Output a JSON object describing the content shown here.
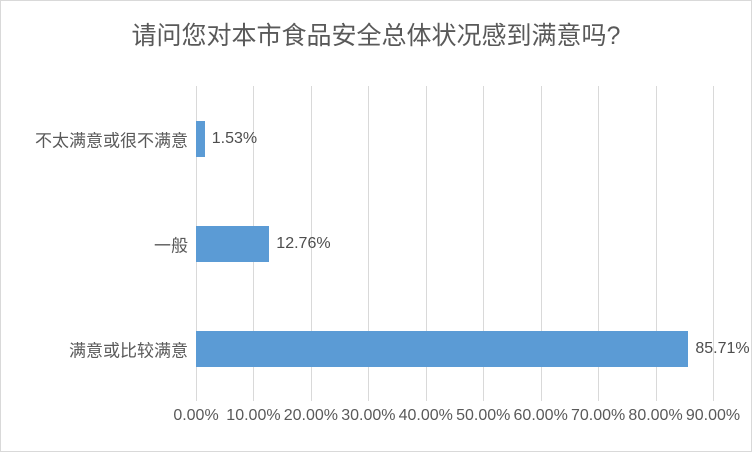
{
  "chart_data": {
    "type": "bar",
    "orientation": "horizontal",
    "title": "请问您对本市食品安全总体状况感到满意吗?",
    "categories_top_to_bottom": [
      "不太满意或很不满意",
      "一般",
      "满意或比较满意"
    ],
    "values": [
      1.53,
      12.76,
      85.71
    ],
    "value_labels": [
      "1.53%",
      "12.76%",
      "85.71%"
    ],
    "x_tick_labels": [
      "0.00%",
      "10.00%",
      "20.00%",
      "30.00%",
      "40.00%",
      "50.00%",
      "60.00%",
      "70.00%",
      "80.00%",
      "90.00%"
    ],
    "x_tick_values": [
      0,
      10,
      20,
      30,
      40,
      50,
      60,
      70,
      80,
      90
    ],
    "xlim": [
      0,
      90
    ],
    "grid": "vertical",
    "legend": false
  },
  "colors": {
    "bar": "#5b9bd5",
    "gridline": "#d9d9d9",
    "title_text": "#595959",
    "axis_text": "#595959",
    "value_text": "#4d4d4d",
    "border": "#d9d9d9",
    "background": "#ffffff"
  }
}
